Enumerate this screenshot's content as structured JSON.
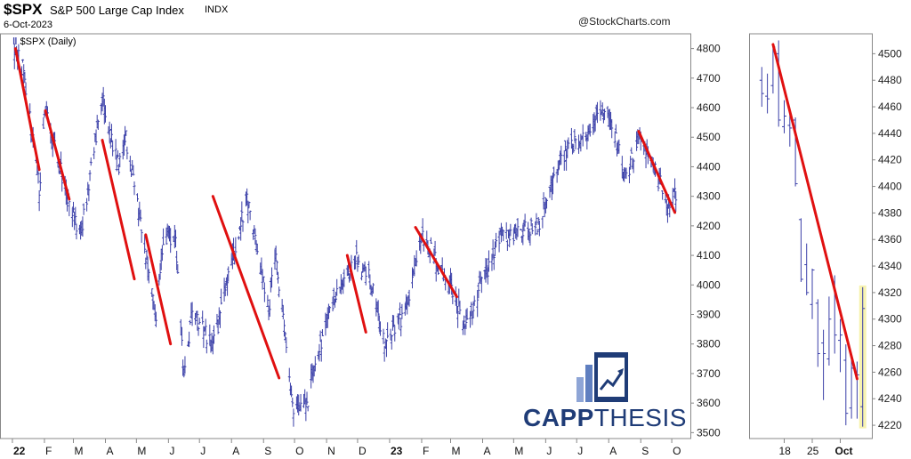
{
  "header": {
    "ticker": "$SPX",
    "index_name": "S&P 500 Large Cap Index",
    "exchange": "INDX",
    "date": "6-Oct-2023",
    "credit": "@StockCharts.com"
  },
  "legend": {
    "label": "$SPX (Daily)"
  },
  "logo": {
    "text_bold": "CAPP",
    "text_thin": "THESIS"
  },
  "colors": {
    "bars": "#3a3fa8",
    "trendlines": "#e01010",
    "highlight": "#f7f3b0",
    "logo": "#1f3c77"
  },
  "chart_data": [
    {
      "type": "ohlc",
      "title": "",
      "series_name": "$SPX (Daily)",
      "x_ticks": [
        "22",
        "F",
        "M",
        "A",
        "M",
        "J",
        "J",
        "A",
        "S",
        "O",
        "N",
        "D",
        "23",
        "F",
        "M",
        "A",
        "M",
        "J",
        "J",
        "A",
        "S",
        "O"
      ],
      "y_ticks": [
        3500,
        3600,
        3700,
        3800,
        3900,
        4000,
        4100,
        4200,
        4300,
        4400,
        4500,
        4600,
        4700,
        4800
      ],
      "ylim": [
        3480,
        4850
      ],
      "grid": false,
      "close_path": [
        [
          "2022-01-03",
          4795
        ],
        [
          "2022-01-12",
          4726
        ],
        [
          "2022-01-27",
          4326
        ],
        [
          "2022-02-02",
          4589
        ],
        [
          "2022-02-24",
          4288
        ],
        [
          "2022-03-08",
          4170
        ],
        [
          "2022-03-29",
          4632
        ],
        [
          "2022-04-14",
          4392
        ],
        [
          "2022-04-21",
          4495
        ],
        [
          "2022-05-20",
          3901
        ],
        [
          "2022-05-27",
          4158
        ],
        [
          "2022-06-08",
          4160
        ],
        [
          "2022-06-16",
          3666
        ],
        [
          "2022-06-24",
          3912
        ],
        [
          "2022-07-14",
          3790
        ],
        [
          "2022-08-16",
          4305
        ],
        [
          "2022-09-06",
          3908
        ],
        [
          "2022-09-12",
          4110
        ],
        [
          "2022-09-30",
          3585
        ],
        [
          "2022-10-12",
          3577
        ],
        [
          "2022-10-21",
          3752
        ],
        [
          "2022-11-10",
          3956
        ],
        [
          "2022-11-30",
          4080
        ],
        [
          "2022-12-13",
          4020
        ],
        [
          "2022-12-28",
          3783
        ],
        [
          "2023-01-18",
          3928
        ],
        [
          "2023-02-02",
          4180
        ],
        [
          "2023-03-09",
          3918
        ],
        [
          "2023-03-13",
          3855
        ],
        [
          "2023-04-18",
          4154
        ],
        [
          "2023-05-26",
          4205
        ],
        [
          "2023-06-15",
          4425
        ],
        [
          "2023-07-31",
          4588
        ],
        [
          "2023-08-18",
          4370
        ],
        [
          "2023-09-01",
          4515
        ],
        [
          "2023-09-27",
          4274
        ],
        [
          "2023-10-06",
          4308
        ]
      ],
      "trendlines": [
        [
          [
            "2022-01-04",
            4800
          ],
          [
            "2022-01-27",
            4390
          ]
        ],
        [
          [
            "2022-02-02",
            4590
          ],
          [
            "2022-02-25",
            4290
          ]
        ],
        [
          [
            "2022-03-29",
            4490
          ],
          [
            "2022-04-29",
            4020
          ]
        ],
        [
          [
            "2022-05-10",
            4170
          ],
          [
            "2022-06-03",
            3800
          ]
        ],
        [
          [
            "2022-07-14",
            4300
          ],
          [
            "2022-09-16",
            3685
          ]
        ],
        [
          [
            "2022-11-21",
            4100
          ],
          [
            "2022-12-09",
            3840
          ]
        ],
        [
          [
            "2023-01-26",
            4195
          ],
          [
            "2023-03-07",
            3960
          ]
        ],
        [
          [
            "2023-08-30",
            4520
          ],
          [
            "2023-10-04",
            4245
          ]
        ]
      ]
    },
    {
      "type": "ohlc",
      "title": "",
      "x_ticks": [
        "18",
        "25",
        "Oct"
      ],
      "y_ticks": [
        4220,
        4240,
        4260,
        4280,
        4300,
        4320,
        4340,
        4360,
        4380,
        4400,
        4420,
        4440,
        4460,
        4480,
        4500
      ],
      "ylim": [
        4210,
        4515
      ],
      "grid": false,
      "bars": [
        {
          "date": "2023-09-12",
          "o": 4480,
          "h": 4490,
          "l": 4460,
          "c": 4470
        },
        {
          "date": "2023-09-13",
          "o": 4468,
          "h": 4485,
          "l": 4455,
          "c": 4466
        },
        {
          "date": "2023-09-14",
          "o": 4476,
          "h": 4505,
          "l": 4470,
          "c": 4505
        },
        {
          "date": "2023-09-15",
          "o": 4500,
          "h": 4510,
          "l": 4445,
          "c": 4450
        },
        {
          "date": "2023-09-18",
          "o": 4445,
          "h": 4465,
          "l": 4440,
          "c": 4453
        },
        {
          "date": "2023-09-19",
          "o": 4446,
          "h": 4458,
          "l": 4430,
          "c": 4444
        },
        {
          "date": "2023-09-20",
          "o": 4450,
          "h": 4452,
          "l": 4400,
          "c": 4402
        },
        {
          "date": "2023-09-21",
          "o": 4375,
          "h": 4376,
          "l": 4328,
          "c": 4330
        },
        {
          "date": "2023-09-22",
          "o": 4341,
          "h": 4357,
          "l": 4318,
          "c": 4320
        },
        {
          "date": "2023-09-25",
          "o": 4311,
          "h": 4338,
          "l": 4300,
          "c": 4337
        },
        {
          "date": "2023-09-26",
          "o": 4312,
          "h": 4315,
          "l": 4264,
          "c": 4274
        },
        {
          "date": "2023-09-27",
          "o": 4282,
          "h": 4292,
          "l": 4239,
          "c": 4274
        },
        {
          "date": "2023-09-28",
          "o": 4270,
          "h": 4317,
          "l": 4265,
          "c": 4300
        },
        {
          "date": "2023-09-29",
          "o": 4328,
          "h": 4333,
          "l": 4274,
          "c": 4288
        },
        {
          "date": "2023-10-02",
          "o": 4284,
          "h": 4300,
          "l": 4260,
          "c": 4288
        },
        {
          "date": "2023-10-03",
          "o": 4269,
          "h": 4281,
          "l": 4220,
          "c": 4229
        },
        {
          "date": "2023-10-04",
          "o": 4233,
          "h": 4269,
          "l": 4225,
          "c": 4263
        },
        {
          "date": "2023-10-05",
          "o": 4260,
          "h": 4268,
          "l": 4225,
          "c": 4258
        },
        {
          "date": "2023-10-06",
          "o": 4234,
          "h": 4324,
          "l": 4219,
          "c": 4308
        }
      ],
      "trendline": [
        [
          "2023-09-14",
          4507
        ],
        [
          "2023-10-05",
          4255
        ]
      ],
      "highlight_last_bar": true
    }
  ]
}
